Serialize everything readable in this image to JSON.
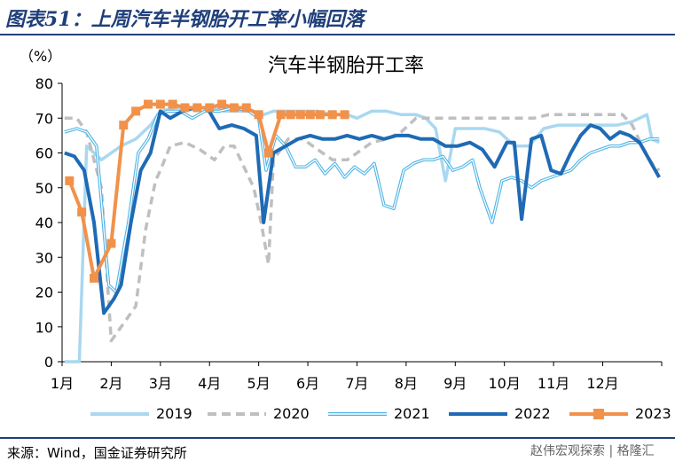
{
  "header": {
    "title": "图表51：上周汽车半钢胎开工率小幅回落"
  },
  "footer": {
    "source": "来源：Wind，国金证券研究所",
    "watermark": "赵伟宏观探索 | 格隆汇"
  },
  "chart_data": {
    "type": "line",
    "title": "汽车半钢胎开工率",
    "unit": "（%）",
    "xlabel": "",
    "ylabel": "",
    "ylim": [
      0,
      80
    ],
    "yticks": [
      0,
      10,
      20,
      30,
      40,
      50,
      60,
      70,
      80
    ],
    "x_domain": [
      1.0,
      13.2
    ],
    "xtick_labels": [
      "1月",
      "2月",
      "3月",
      "4月",
      "5月",
      "6月",
      "7月",
      "8月",
      "9月",
      "10月",
      "11月",
      "12月"
    ],
    "grid": false,
    "legend_position": "bottom",
    "series": [
      {
        "name": "2019",
        "color": "#a9d8f0",
        "style": "solid",
        "x": [
          1.05,
          1.15,
          1.25,
          1.35,
          1.5,
          1.65,
          1.8,
          2.0,
          2.2,
          2.5,
          2.8,
          3.0,
          3.3,
          3.6,
          4.0,
          4.3,
          4.6,
          4.9,
          5.1,
          5.3,
          5.6,
          5.9,
          6.2,
          6.5,
          6.8,
          7.0,
          7.3,
          7.6,
          7.9,
          8.2,
          8.4,
          8.6,
          8.8,
          9.0,
          9.3,
          9.6,
          9.9,
          10.2,
          10.5,
          10.8,
          11.1,
          11.4,
          11.7,
          12.0,
          12.3,
          12.6,
          12.9,
          13.0,
          13.15
        ],
        "y": [
          0,
          0,
          0,
          0,
          62,
          60,
          58,
          60,
          62,
          64,
          68,
          72,
          73,
          73,
          73,
          72,
          72,
          72,
          71,
          72,
          72,
          72,
          72,
          71,
          71,
          70,
          72,
          72,
          71,
          71,
          70,
          67,
          52,
          67,
          67,
          67,
          66,
          62,
          62,
          67,
          68,
          68,
          68,
          68,
          68,
          69,
          71,
          64,
          63
        ]
      },
      {
        "name": "2020",
        "color": "#bfbfbf",
        "style": "dashed",
        "x": [
          1.05,
          1.3,
          1.5,
          1.8,
          2.0,
          2.2,
          2.5,
          2.7,
          2.9,
          3.0,
          3.2,
          3.5,
          3.8,
          4.1,
          4.3,
          4.5,
          4.7,
          4.9,
          5.05,
          5.2,
          5.3,
          5.6,
          5.9,
          6.2,
          6.5,
          6.8,
          7.0,
          7.3,
          7.6,
          7.9,
          8.2,
          8.5,
          8.8,
          9.1,
          9.4,
          9.7,
          10.0,
          10.3,
          10.6,
          10.9,
          11.2,
          11.5,
          11.8,
          12.1,
          12.4,
          12.6,
          12.8,
          13.0,
          13.15
        ],
        "y": [
          70,
          70,
          66,
          50,
          6,
          10,
          16,
          38,
          52,
          55,
          62,
          63,
          61,
          58,
          62,
          62,
          56,
          50,
          40,
          28,
          58,
          64,
          64,
          61,
          58,
          58,
          60,
          63,
          64,
          66,
          70,
          70,
          70,
          70,
          70,
          70,
          70,
          70,
          70,
          71,
          71,
          71,
          71,
          71,
          71,
          68,
          62,
          57,
          55
        ]
      },
      {
        "name": "2021",
        "color": "#4db3e6",
        "style": "double",
        "x": [
          1.05,
          1.3,
          1.5,
          1.7,
          1.95,
          2.1,
          2.35,
          2.55,
          2.75,
          2.95,
          3.15,
          3.4,
          3.65,
          3.9,
          4.2,
          4.5,
          4.8,
          5.0,
          5.15,
          5.35,
          5.55,
          5.75,
          5.95,
          6.15,
          6.35,
          6.55,
          6.75,
          6.95,
          7.15,
          7.35,
          7.55,
          7.75,
          7.95,
          8.15,
          8.35,
          8.55,
          8.75,
          8.95,
          9.15,
          9.35,
          9.5,
          9.75,
          9.95,
          10.15,
          10.35,
          10.55,
          10.75,
          10.95,
          11.15,
          11.35,
          11.55,
          11.75,
          11.95,
          12.15,
          12.35,
          12.55,
          12.75,
          12.95,
          13.15
        ],
        "y": [
          66,
          67,
          66,
          62,
          22,
          20,
          40,
          60,
          64,
          71,
          72,
          72,
          70,
          72,
          72,
          73,
          72,
          70,
          55,
          65,
          62,
          56,
          56,
          58,
          54,
          57,
          53,
          56,
          54,
          57,
          45,
          44,
          55,
          57,
          58,
          58,
          59,
          55,
          56,
          58,
          50,
          40,
          52,
          53,
          52,
          50,
          52,
          53,
          54,
          55,
          58,
          60,
          61,
          62,
          62,
          63,
          63,
          64,
          64
        ]
      },
      {
        "name": "2022",
        "color": "#1f6ab5",
        "style": "solid",
        "x": [
          1.05,
          1.25,
          1.45,
          1.65,
          1.85,
          2.05,
          2.2,
          2.4,
          2.6,
          2.8,
          3.0,
          3.2,
          3.45,
          3.7,
          3.95,
          4.2,
          4.45,
          4.7,
          4.95,
          5.1,
          5.3,
          5.55,
          5.8,
          6.05,
          6.3,
          6.55,
          6.8,
          7.05,
          7.3,
          7.55,
          7.8,
          8.05,
          8.3,
          8.55,
          8.8,
          9.05,
          9.3,
          9.55,
          9.8,
          10.05,
          10.2,
          10.35,
          10.55,
          10.75,
          10.95,
          11.15,
          11.35,
          11.55,
          11.75,
          11.95,
          12.15,
          12.35,
          12.55,
          12.75,
          12.95,
          13.15
        ],
        "y": [
          60,
          59,
          55,
          40,
          14,
          18,
          22,
          40,
          55,
          60,
          72,
          70,
          72,
          73,
          73,
          67,
          68,
          67,
          65,
          40,
          60,
          62,
          64,
          65,
          64,
          64,
          65,
          64,
          65,
          64,
          65,
          65,
          64,
          64,
          62,
          62,
          63,
          61,
          56,
          63,
          63,
          41,
          64,
          65,
          55,
          54,
          60,
          65,
          68,
          67,
          64,
          66,
          65,
          63,
          58,
          53
        ]
      },
      {
        "name": "2023",
        "color": "#f2914a",
        "style": "square-markers",
        "x": [
          1.15,
          1.4,
          1.65,
          2.0,
          2.25,
          2.5,
          2.75,
          3.0,
          3.25,
          3.5,
          3.75,
          4.0,
          4.25,
          4.5,
          4.75,
          5.0,
          5.2,
          5.45,
          5.65,
          5.85,
          6.05,
          6.25,
          6.5,
          6.75
        ],
        "y": [
          52,
          43,
          24,
          34,
          68,
          72,
          74,
          74,
          74,
          73,
          73,
          73,
          74,
          73,
          73,
          71,
          60,
          71,
          71,
          71,
          71,
          71,
          71,
          71
        ]
      }
    ]
  }
}
